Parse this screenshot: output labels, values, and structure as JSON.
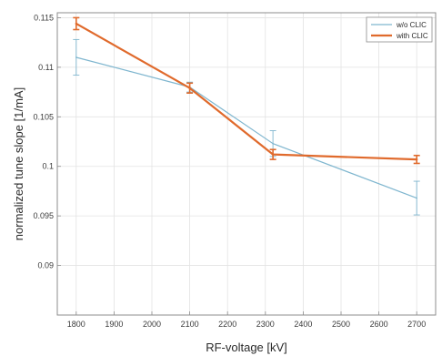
{
  "chart_data": {
    "type": "line",
    "title": "",
    "xlabel": "RF-voltage [kV]",
    "ylabel": "normalized tune slope [1/mA]",
    "xlim": [
      1750,
      2750
    ],
    "ylim": [
      0.085,
      0.1155
    ],
    "x_ticks": [
      1800,
      1900,
      2000,
      2100,
      2200,
      2300,
      2400,
      2500,
      2600,
      2700
    ],
    "x_tick_labels": [
      "1800",
      "1900",
      "2000",
      "2100",
      "2200",
      "2300",
      "2400",
      "2500",
      "2600",
      "2700"
    ],
    "y_ticks": [
      0.09,
      0.095,
      0.1,
      0.105,
      0.11,
      0.115
    ],
    "y_tick_labels": [
      "0.09",
      "0.095",
      "0.1",
      "0.105",
      "0.11",
      "0.115"
    ],
    "grid": true,
    "legend_position": "top-right",
    "series": [
      {
        "name": "w/o CLIC",
        "color": "#7fb6cf",
        "x": [
          1800,
          2100,
          2320,
          2700
        ],
        "y": [
          0.111,
          0.108,
          0.1023,
          0.0968
        ],
        "err": [
          0.0018,
          0.0005,
          0.0013,
          0.0017
        ]
      },
      {
        "name": "with CLIC",
        "color": "#e06a2c",
        "x": [
          1800,
          2100,
          2320,
          2700
        ],
        "y": [
          0.1144,
          0.1079,
          0.1012,
          0.1007
        ],
        "err": [
          0.0006,
          0.0005,
          0.0005,
          0.0004
        ]
      }
    ]
  }
}
